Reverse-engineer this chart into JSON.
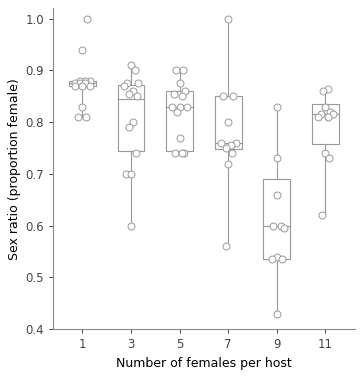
{
  "categories": [
    1,
    3,
    5,
    7,
    9,
    11
  ],
  "xlabel": "Number of females per host",
  "ylabel": "Sex ratio (proportion female)",
  "ylim": [
    0.4,
    1.02
  ],
  "yticks": [
    0.4,
    0.5,
    0.6,
    0.7,
    0.8,
    0.9,
    1.0
  ],
  "background_color": "#ffffff",
  "dot_color": "#ffffff",
  "dot_edge_color": "#999999",
  "box_edge_color": "#999999",
  "box_width": 0.55,
  "dots": {
    "1": [
      1.0,
      0.94,
      0.88,
      0.88,
      0.88,
      0.875,
      0.875,
      0.875,
      0.87,
      0.87,
      0.87,
      0.83,
      0.81,
      0.81
    ],
    "3": [
      0.91,
      0.9,
      0.875,
      0.875,
      0.87,
      0.86,
      0.855,
      0.85,
      0.8,
      0.79,
      0.74,
      0.7,
      0.7,
      0.6
    ],
    "5": [
      0.9,
      0.9,
      0.875,
      0.86,
      0.855,
      0.85,
      0.83,
      0.83,
      0.83,
      0.82,
      0.77,
      0.74,
      0.74,
      0.74
    ],
    "7": [
      1.0,
      0.85,
      0.85,
      0.8,
      0.76,
      0.76,
      0.755,
      0.75,
      0.74,
      0.72,
      0.56
    ],
    "9": [
      0.83,
      0.73,
      0.66,
      0.6,
      0.6,
      0.595,
      0.54,
      0.535,
      0.535,
      0.43
    ],
    "11": [
      0.865,
      0.86,
      0.83,
      0.82,
      0.815,
      0.815,
      0.81,
      0.81,
      0.74,
      0.73,
      0.62
    ]
  },
  "box_stats": {
    "1": {
      "q1": 0.87,
      "median": 0.875,
      "q3": 0.88,
      "whislo": 0.81,
      "whishi": 0.88
    },
    "3": {
      "q1": 0.745,
      "median": 0.845,
      "q3": 0.872,
      "whislo": 0.6,
      "whishi": 0.91
    },
    "5": {
      "q1": 0.745,
      "median": 0.83,
      "q3": 0.86,
      "whislo": 0.74,
      "whishi": 0.9
    },
    "7": {
      "q1": 0.748,
      "median": 0.76,
      "q3": 0.85,
      "whislo": 0.56,
      "whishi": 1.0
    },
    "9": {
      "q1": 0.535,
      "median": 0.6,
      "q3": 0.69,
      "whislo": 0.43,
      "whishi": 0.83
    },
    "11": {
      "q1": 0.758,
      "median": 0.815,
      "q3": 0.835,
      "whislo": 0.62,
      "whishi": 0.865
    }
  },
  "jitter": {
    "1": [
      0.1,
      0.0,
      0.15,
      0.05,
      -0.05,
      -0.15,
      -0.05,
      0.05,
      0.15,
      -0.15,
      0.0,
      0.0,
      -0.08,
      0.08
    ],
    "3": [
      0.0,
      0.08,
      -0.08,
      0.15,
      -0.15,
      0.05,
      -0.05,
      0.12,
      0.05,
      -0.05,
      0.1,
      -0.1,
      0.0,
      0.0
    ],
    "5": [
      -0.08,
      0.08,
      0.0,
      0.12,
      -0.12,
      0.05,
      -0.15,
      0.0,
      0.15,
      -0.05,
      0.0,
      0.1,
      -0.1,
      0.05
    ],
    "7": [
      0.0,
      0.1,
      -0.1,
      0.0,
      0.15,
      -0.15,
      0.05,
      -0.05,
      0.08,
      0.0,
      -0.05
    ],
    "9": [
      0.0,
      0.0,
      0.0,
      0.08,
      -0.08,
      0.15,
      0.0,
      -0.1,
      0.1,
      0.0
    ],
    "11": [
      0.05,
      -0.05,
      0.0,
      0.1,
      -0.1,
      0.15,
      -0.15,
      0.05,
      0.0,
      0.08,
      -0.08
    ]
  }
}
